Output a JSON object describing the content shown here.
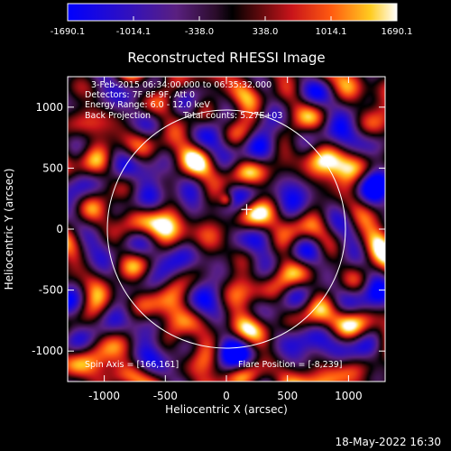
{
  "chart_data": {
    "type": "heatmap",
    "title": "Reconstructed RHESSI Image",
    "xlabel": "Heliocentric X (arcsec)",
    "ylabel": "Heliocentric Y (arcsec)",
    "xlim": [
      -1300,
      1300
    ],
    "ylim": [
      -1250,
      1250
    ],
    "x_ticks": [
      "-1000",
      "-500",
      "0",
      "500",
      "1000"
    ],
    "x_tick_values": [
      -1000,
      -500,
      0,
      500,
      1000
    ],
    "y_ticks": [
      "1000",
      "500",
      "0",
      "-500",
      "-1000"
    ],
    "y_tick_values": [
      1000,
      500,
      0,
      -500,
      -1000
    ],
    "colorbar": {
      "min": -1690.1,
      "max": 1690.1,
      "tick_labels": [
        "-1690.1",
        "-1014.1",
        "-338.0",
        "338.0",
        "1014.1",
        "1690.1"
      ],
      "tick_values": [
        -1690.1,
        -1014.1,
        -338.0,
        338.0,
        1014.1,
        1690.1
      ]
    },
    "annotations": {
      "time_range": "3-Feb-2015 06:34:00.000 to 06:35:32.000",
      "detectors": "Detectors: 7F 8F 9F, Att 0",
      "energy_range": "Energy Range: 6.0 - 12.0 keV",
      "method": "Back Projection",
      "total_counts": "Total counts: 5.27E+03",
      "spin_axis": "Spin Axis = [166,161]",
      "flare_position": "Flare Position = [-8,239]"
    },
    "solar_limb_radius_arcsec": 975,
    "spin_axis_marker": [
      166,
      161
    ],
    "peak_source": [
      -5,
      245
    ],
    "grid": false
  },
  "footer": {
    "timestamp": "18-May-2022 16:30"
  },
  "colors": {
    "background": "#000000",
    "text": "#ffffff"
  }
}
